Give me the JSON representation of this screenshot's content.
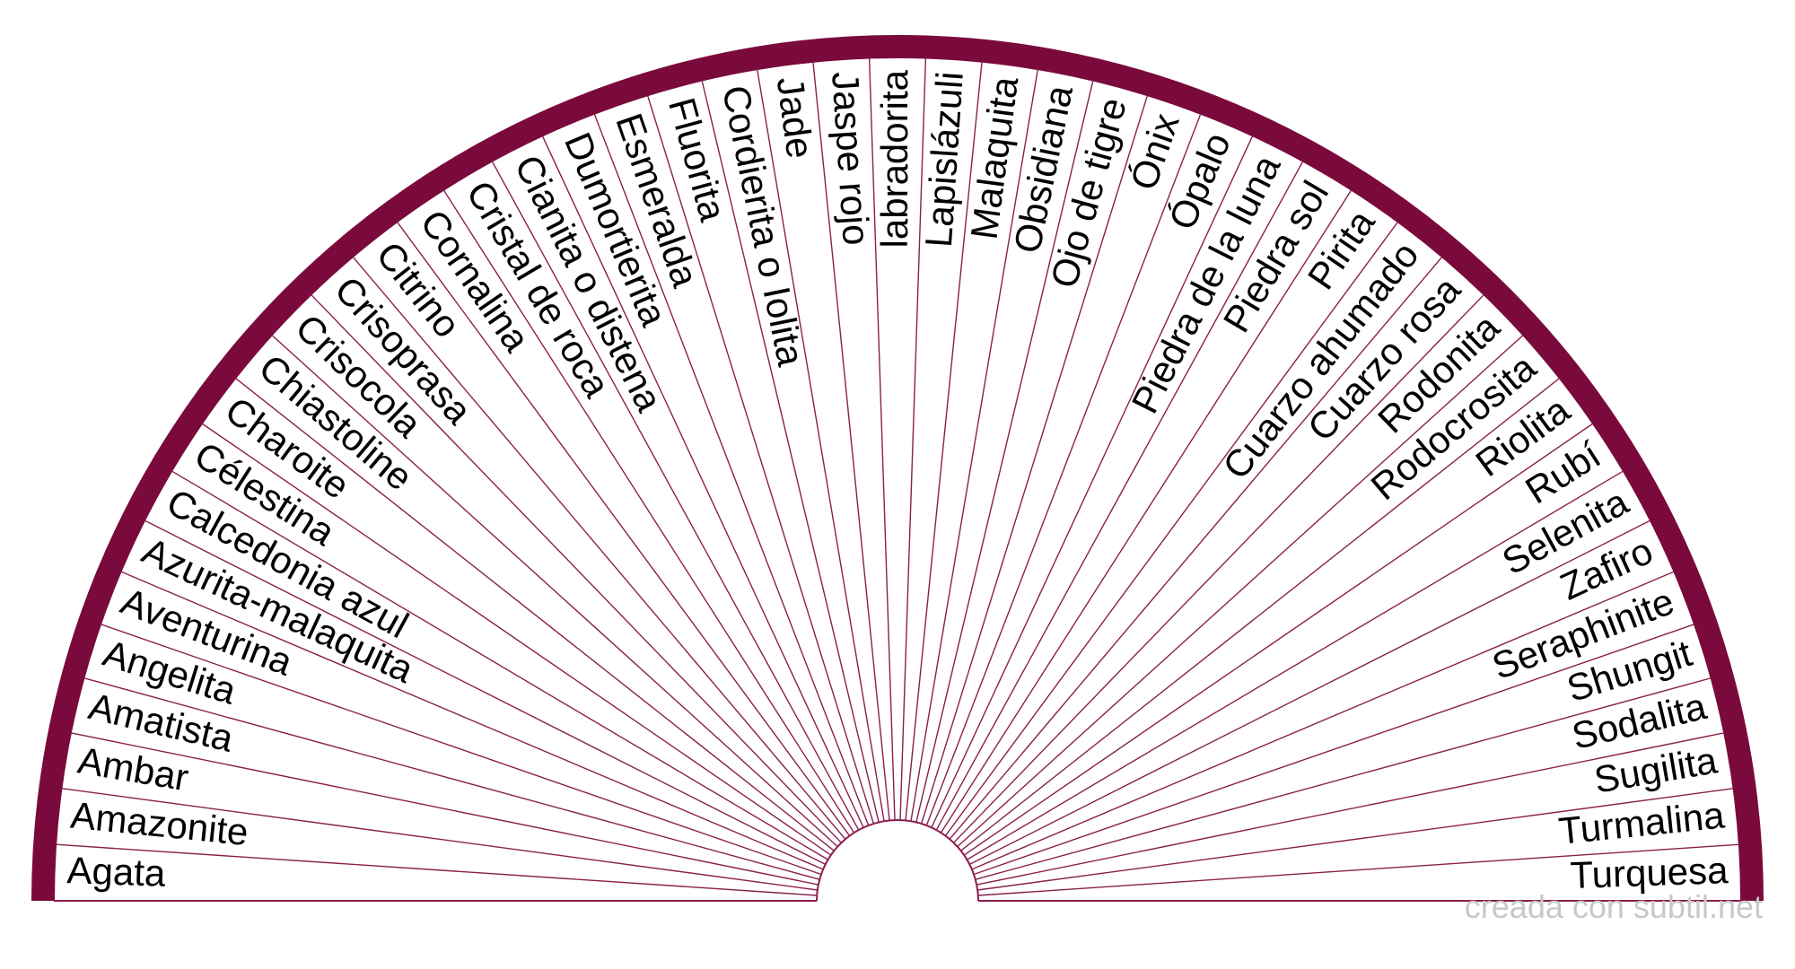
{
  "colors": {
    "rim": "#7a0a3c",
    "divider": "#8a1f4e",
    "label": "#000000",
    "credit": "#c8c8c8",
    "background": "#ffffff"
  },
  "pendulum": {
    "segments": [
      "Agata",
      "Amazonite",
      "Ambar",
      "Amatista",
      "Angelita",
      "Aventurina",
      "Azurita-malaquita",
      "Calcedonia azul",
      "Célestina",
      "Charoite",
      "Chiastoline",
      "Crisocola",
      "Crisoprasa",
      "Citrino",
      "Cornalina",
      "Cristal de roca",
      "Cianita o distena",
      "Dumortierita",
      "Esmeralda",
      "Fluorita",
      "Cordierita o Iolita",
      "Jade",
      "Jaspe rojo",
      "labradorita",
      "Lapislázuli",
      "Malaquita",
      "Obsidiana",
      "Ojo de tigre",
      "Ónix",
      "Ópalo",
      "Piedra de la luna",
      "Piedra sol",
      "Pirita",
      "Cuarzo ahumado",
      "Cuarzo rosa",
      "Rodonita",
      "Rodocrosita",
      "Riolita",
      "Rubí",
      "Selenita",
      "Zafiro",
      "Seraphinite",
      "Shungit",
      "Sodalita",
      "Sugilita",
      "Turmalina",
      "Turquesa"
    ]
  },
  "credit": "creada con subtil.net"
}
